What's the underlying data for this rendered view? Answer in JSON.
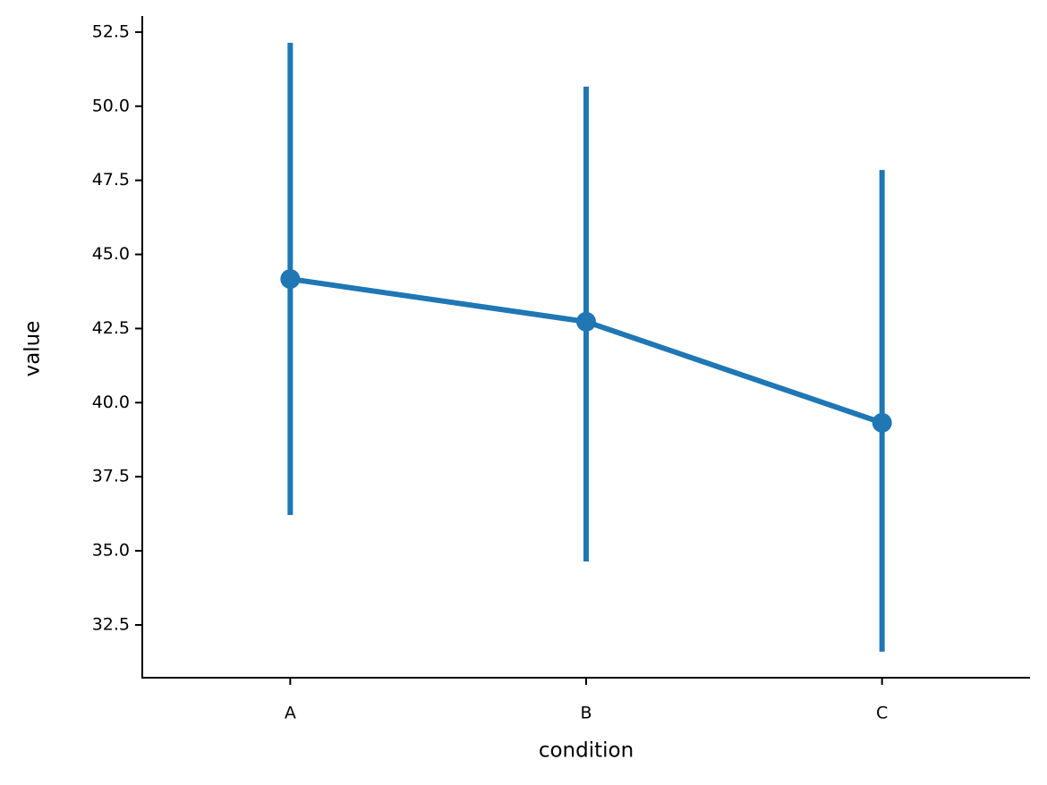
{
  "chart_data": {
    "type": "pointplot",
    "x_label": "condition",
    "y_label": "value",
    "categories": [
      "A",
      "B",
      "C"
    ],
    "values": [
      44.17,
      42.73,
      39.32
    ],
    "error_low": [
      36.21,
      34.64,
      31.6
    ],
    "error_high": [
      52.14,
      50.66,
      47.85
    ],
    "color": "#1f77b4",
    "ylim": [
      30.72,
      53.04
    ],
    "yticks": [
      {
        "value": 32.5,
        "label": "32.5"
      },
      {
        "value": 35,
        "label": "35.0"
      },
      {
        "value": 37.5,
        "label": "37.5"
      },
      {
        "value": 40,
        "label": "40.0"
      },
      {
        "value": 42.5,
        "label": "42.5"
      },
      {
        "value": 45,
        "label": "45.0"
      },
      {
        "value": 47.5,
        "label": "47.5"
      },
      {
        "value": 50,
        "label": "50.0"
      },
      {
        "value": 52.5,
        "label": "52.5"
      }
    ],
    "grid": false
  }
}
